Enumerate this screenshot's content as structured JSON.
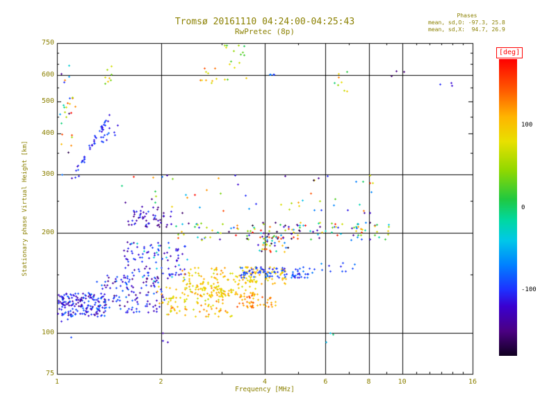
{
  "header": {
    "title": "Tromsø 20161110 04:24:00-04:25:43",
    "subtitle": "RwPretec (8p)",
    "stats_title": "Phases",
    "stats_o": "mean, sd,O: -97.3, 25.8",
    "stats_x": "mean, sd,X:  94.7, 26.9"
  },
  "axes": {
    "x_label": "Frequency [MHz]",
    "y_label": "Stationary phase Virtual Height [km]",
    "x_range": [
      1,
      16
    ],
    "y_range": [
      75,
      750
    ],
    "scale": "log-log",
    "x_ticks": [
      1,
      2,
      4,
      6,
      8,
      10,
      16
    ],
    "y_ticks": [
      750,
      600,
      500,
      400,
      300,
      200,
      100,
      75
    ],
    "x_gridlines": [
      2,
      4,
      6,
      8,
      10
    ],
    "y_gridlines": [
      100,
      200,
      300,
      600
    ],
    "x_minor_ticks": [
      3,
      5,
      7,
      9,
      11,
      12,
      13,
      14,
      15
    ],
    "y_minor_ticks": [
      150,
      250,
      350,
      450,
      550,
      650,
      700
    ]
  },
  "colorbar": {
    "label": "[deg]",
    "label_color": "#ff0000",
    "range": [
      -180,
      180
    ],
    "ticks": [
      100,
      0,
      -100
    ],
    "stops": [
      [
        -180,
        "#100020"
      ],
      [
        -150,
        "#4B0082"
      ],
      [
        -120,
        "#3A00D0"
      ],
      [
        -100,
        "#1E30FF"
      ],
      [
        -70,
        "#0080FF"
      ],
      [
        -40,
        "#00C8E8"
      ],
      [
        -15,
        "#00D8A0"
      ],
      [
        10,
        "#20C840"
      ],
      [
        45,
        "#90D800"
      ],
      [
        80,
        "#E8E000"
      ],
      [
        110,
        "#FFB400"
      ],
      [
        140,
        "#FF6000"
      ],
      [
        180,
        "#FF0000"
      ]
    ]
  },
  "colors": {
    "axis_text": "#8B8000",
    "frame": "#000000",
    "background": "#ffffff"
  },
  "chart_data": {
    "type": "scatter",
    "title": "Tromsø 20161110 04:24:00-04:25:43 / RwPretec (8p)",
    "xlabel": "Frequency [MHz]",
    "ylabel": "Stationary phase Virtual Height [km]",
    "marker": "plus",
    "color_variable": "phase [deg]",
    "color_range": [
      -180,
      180
    ],
    "x_range": [
      1,
      16
    ],
    "y_range": [
      75,
      750
    ],
    "note": "Ionogram echo scatter; clusters give frequency (MHz, log-uniform), virtual height (km) and phase (deg) extents with point counts",
    "clusters": [
      {
        "label": "o-mode-low-dense",
        "n": 170,
        "f_mhz": [
          1.0,
          1.38
        ],
        "h_km": [
          112,
          132
        ],
        "phase_deg": [
          -145,
          -75
        ]
      },
      {
        "label": "o-mode-low-spread",
        "n": 120,
        "f_mhz": [
          1.3,
          2.05
        ],
        "h_km": [
          115,
          150
        ],
        "phase_deg": [
          -155,
          -70
        ]
      },
      {
        "label": "o-mode-mid",
        "n": 90,
        "f_mhz": [
          1.55,
          2.35
        ],
        "h_km": [
          145,
          188
        ],
        "phase_deg": [
          -140,
          -80
        ]
      },
      {
        "label": "cyan-sprinkle",
        "n": 15,
        "f_mhz": [
          1.5,
          2.4
        ],
        "h_km": [
          140,
          190
        ],
        "phase_deg": [
          -60,
          -20
        ]
      },
      {
        "label": "x-mode-low",
        "n": 120,
        "f_mhz": [
          1.95,
          3.2
        ],
        "h_km": [
          112,
          138
        ],
        "phase_deg": [
          60,
          135
        ]
      },
      {
        "label": "x-mode-mid",
        "n": 150,
        "f_mhz": [
          2.3,
          3.8
        ],
        "h_km": [
          128,
          158
        ],
        "phase_deg": [
          65,
          125
        ]
      },
      {
        "label": "x-mode-orange-blob",
        "n": 45,
        "f_mhz": [
          3.3,
          4.3
        ],
        "h_km": [
          118,
          130
        ],
        "phase_deg": [
          95,
          150
        ]
      },
      {
        "label": "x-mode-right",
        "n": 60,
        "f_mhz": [
          3.5,
          4.6
        ],
        "h_km": [
          140,
          158
        ],
        "phase_deg": [
          70,
          120
        ]
      },
      {
        "label": "o-mode-streak",
        "n": 85,
        "f_mhz": [
          3.4,
          5.4
        ],
        "h_km": [
          146,
          158
        ],
        "phase_deg": [
          -115,
          -65
        ]
      },
      {
        "label": "o-mode-streak-ext",
        "n": 12,
        "f_mhz": [
          5.4,
          7.5
        ],
        "h_km": [
          150,
          165
        ],
        "phase_deg": [
          -110,
          -60
        ]
      },
      {
        "label": "purple-220km",
        "n": 55,
        "f_mhz": [
          1.6,
          2.15
        ],
        "h_km": [
          208,
          242
        ],
        "phase_deg": [
          -155,
          -95
        ]
      },
      {
        "label": "mixed-200km-band",
        "n": 140,
        "f_mhz": [
          2.2,
          9.3
        ],
        "h_km": [
          190,
          216
        ],
        "phase_deg": [
          -180,
          180
        ]
      },
      {
        "label": "mixed-185km",
        "n": 35,
        "f_mhz": [
          3.8,
          4.7
        ],
        "h_km": [
          175,
          196
        ],
        "phase_deg": [
          -180,
          180
        ]
      },
      {
        "label": "sparse-mid",
        "n": 55,
        "f_mhz": [
          1.5,
          8.5
        ],
        "h_km": [
          230,
          300
        ],
        "phase_deg": [
          -180,
          180
        ]
      },
      {
        "label": "diagonal-trace",
        "n": 38,
        "f_mhz": [
          1.12,
          1.42
        ],
        "h_km": [
          295,
          455
        ],
        "phase_deg": [
          -135,
          -85
        ],
        "trend": "diagonal"
      },
      {
        "label": "trace-blob",
        "n": 18,
        "f_mhz": [
          1.33,
          1.5
        ],
        "h_km": [
          375,
          425
        ],
        "phase_deg": [
          -120,
          -80
        ]
      },
      {
        "label": "left-column",
        "n": 22,
        "f_mhz": [
          1.02,
          1.12
        ],
        "h_km": [
          290,
          660
        ],
        "phase_deg": [
          -180,
          180
        ]
      },
      {
        "label": "top-a",
        "n": 8,
        "f_mhz": [
          1.35,
          1.45
        ],
        "h_km": [
          560,
          640
        ],
        "phase_deg": [
          20,
          110
        ]
      },
      {
        "label": "top-b",
        "n": 10,
        "f_mhz": [
          2.55,
          2.9
        ],
        "h_km": [
          560,
          630
        ],
        "phase_deg": [
          60,
          160
        ]
      },
      {
        "label": "top-c",
        "n": 16,
        "f_mhz": [
          3.05,
          3.55
        ],
        "h_km": [
          575,
          745
        ],
        "phase_deg": [
          0,
          100
        ]
      },
      {
        "label": "top-blue",
        "n": 4,
        "f_mhz": [
          4.05,
          4.3
        ],
        "h_km": [
          595,
          630
        ],
        "phase_deg": [
          -110,
          -70
        ]
      },
      {
        "label": "top-right",
        "n": 8,
        "f_mhz": [
          6.2,
          7.0
        ],
        "h_km": [
          530,
          615
        ],
        "phase_deg": [
          -40,
          160
        ]
      },
      {
        "label": "far-right-blue",
        "n": 3,
        "f_mhz": [
          12.5,
          14.0
        ],
        "h_km": [
          495,
          600
        ],
        "phase_deg": [
          -120,
          -80
        ]
      },
      {
        "label": "ten-mhz-dark",
        "n": 3,
        "f_mhz": [
          9.2,
          10.2
        ],
        "h_km": [
          580,
          620
        ],
        "phase_deg": [
          -160,
          -120
        ]
      },
      {
        "label": "left-mid-yellow",
        "n": 6,
        "f_mhz": [
          1.04,
          1.14
        ],
        "h_km": [
          440,
          520
        ],
        "phase_deg": [
          50,
          140
        ]
      },
      {
        "label": "low-outliers-a",
        "n": 3,
        "f_mhz": [
          1.98,
          2.15
        ],
        "h_km": [
          93,
          102
        ],
        "phase_deg": [
          -150,
          -90
        ]
      },
      {
        "label": "low-outliers-b",
        "n": 3,
        "f_mhz": [
          5.9,
          6.4
        ],
        "h_km": [
          92,
          100
        ],
        "phase_deg": [
          -60,
          0
        ]
      },
      {
        "label": "low-outliers-c",
        "n": 4,
        "f_mhz": [
          1.02,
          1.1
        ],
        "h_km": [
          96,
          120
        ],
        "phase_deg": [
          -120,
          -60
        ]
      }
    ]
  }
}
